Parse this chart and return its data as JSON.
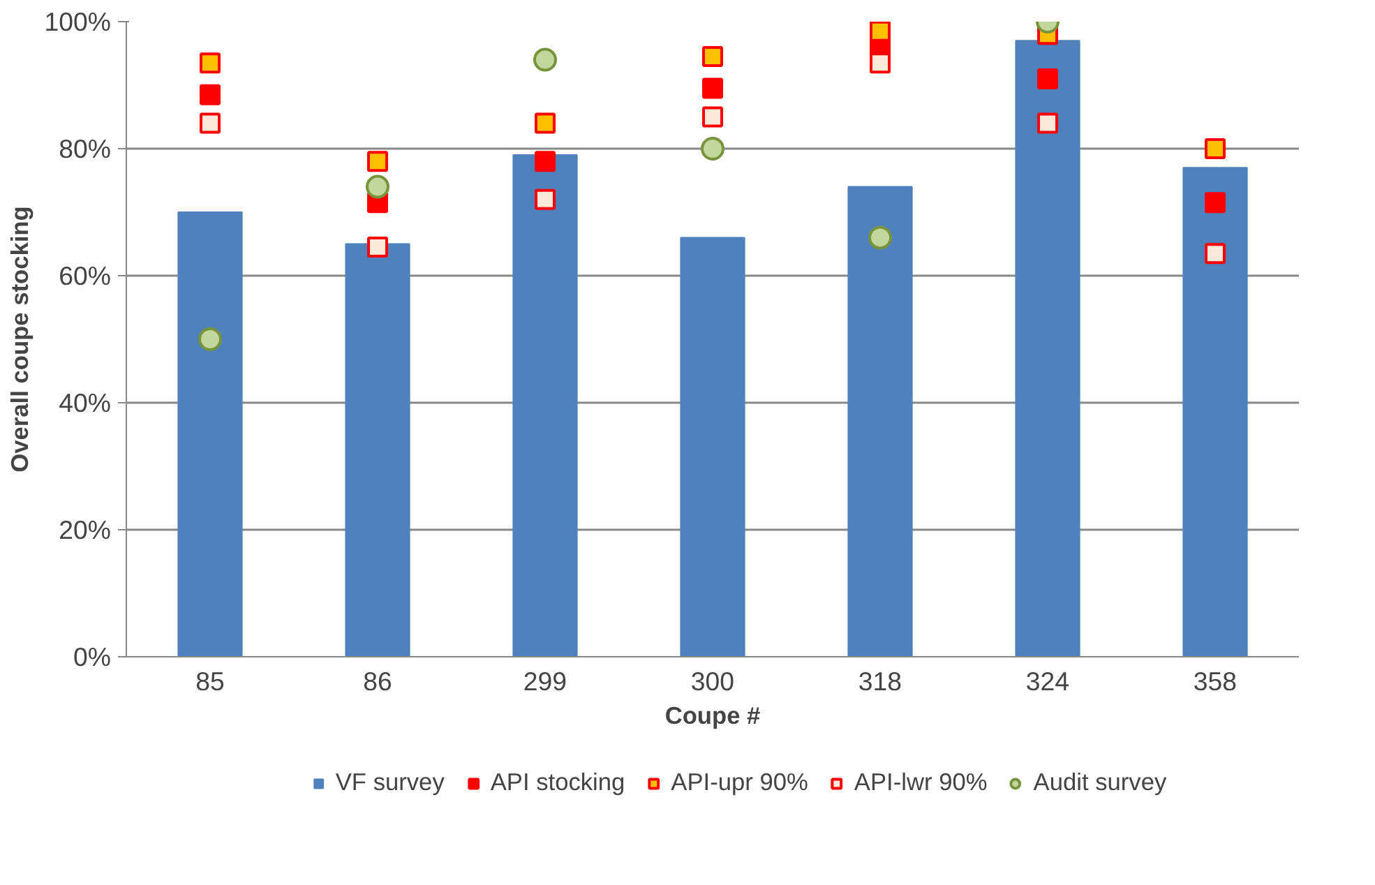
{
  "chart_data": {
    "type": "bar",
    "xlabel": "Coupe #",
    "ylabel": "Overall coupe stocking",
    "categories": [
      "85",
      "86",
      "299",
      "300",
      "318",
      "324",
      "358"
    ],
    "ylim": [
      0,
      100
    ],
    "yticks": [
      {
        "value": 0,
        "label": "0%"
      },
      {
        "value": 20,
        "label": "20%"
      },
      {
        "value": 40,
        "label": "40%"
      },
      {
        "value": 60,
        "label": "60%"
      },
      {
        "value": 80,
        "label": "80%"
      },
      {
        "value": 100,
        "label": "100%"
      }
    ],
    "grid": "y",
    "legend": "bottom",
    "series": [
      {
        "name": "VF survey",
        "color": "#4f81bd",
        "values": [
          70,
          65,
          79,
          66,
          74,
          97,
          77
        ]
      },
      {
        "name": "API stocking",
        "type": "scatter",
        "marker": "square",
        "color": "#ff0000",
        "values": [
          88.5,
          71.5,
          78,
          89.5,
          96,
          91,
          71.5
        ]
      },
      {
        "name": "API-upr 90%",
        "type": "scatter",
        "marker": "square",
        "color": "#ffc000",
        "values": [
          93.5,
          78,
          84,
          94.5,
          98.5,
          98,
          80
        ]
      },
      {
        "name": "API-lwr 90%",
        "type": "scatter",
        "marker": "square",
        "color": "#fde9d9",
        "values": [
          84,
          64.5,
          72,
          85,
          93.5,
          84,
          63.5
        ]
      },
      {
        "name": "Audit survey",
        "type": "scatter",
        "marker": "circle",
        "color": "#c3d69b",
        "values": [
          50,
          74,
          94,
          80,
          66,
          100,
          null
        ]
      }
    ]
  }
}
